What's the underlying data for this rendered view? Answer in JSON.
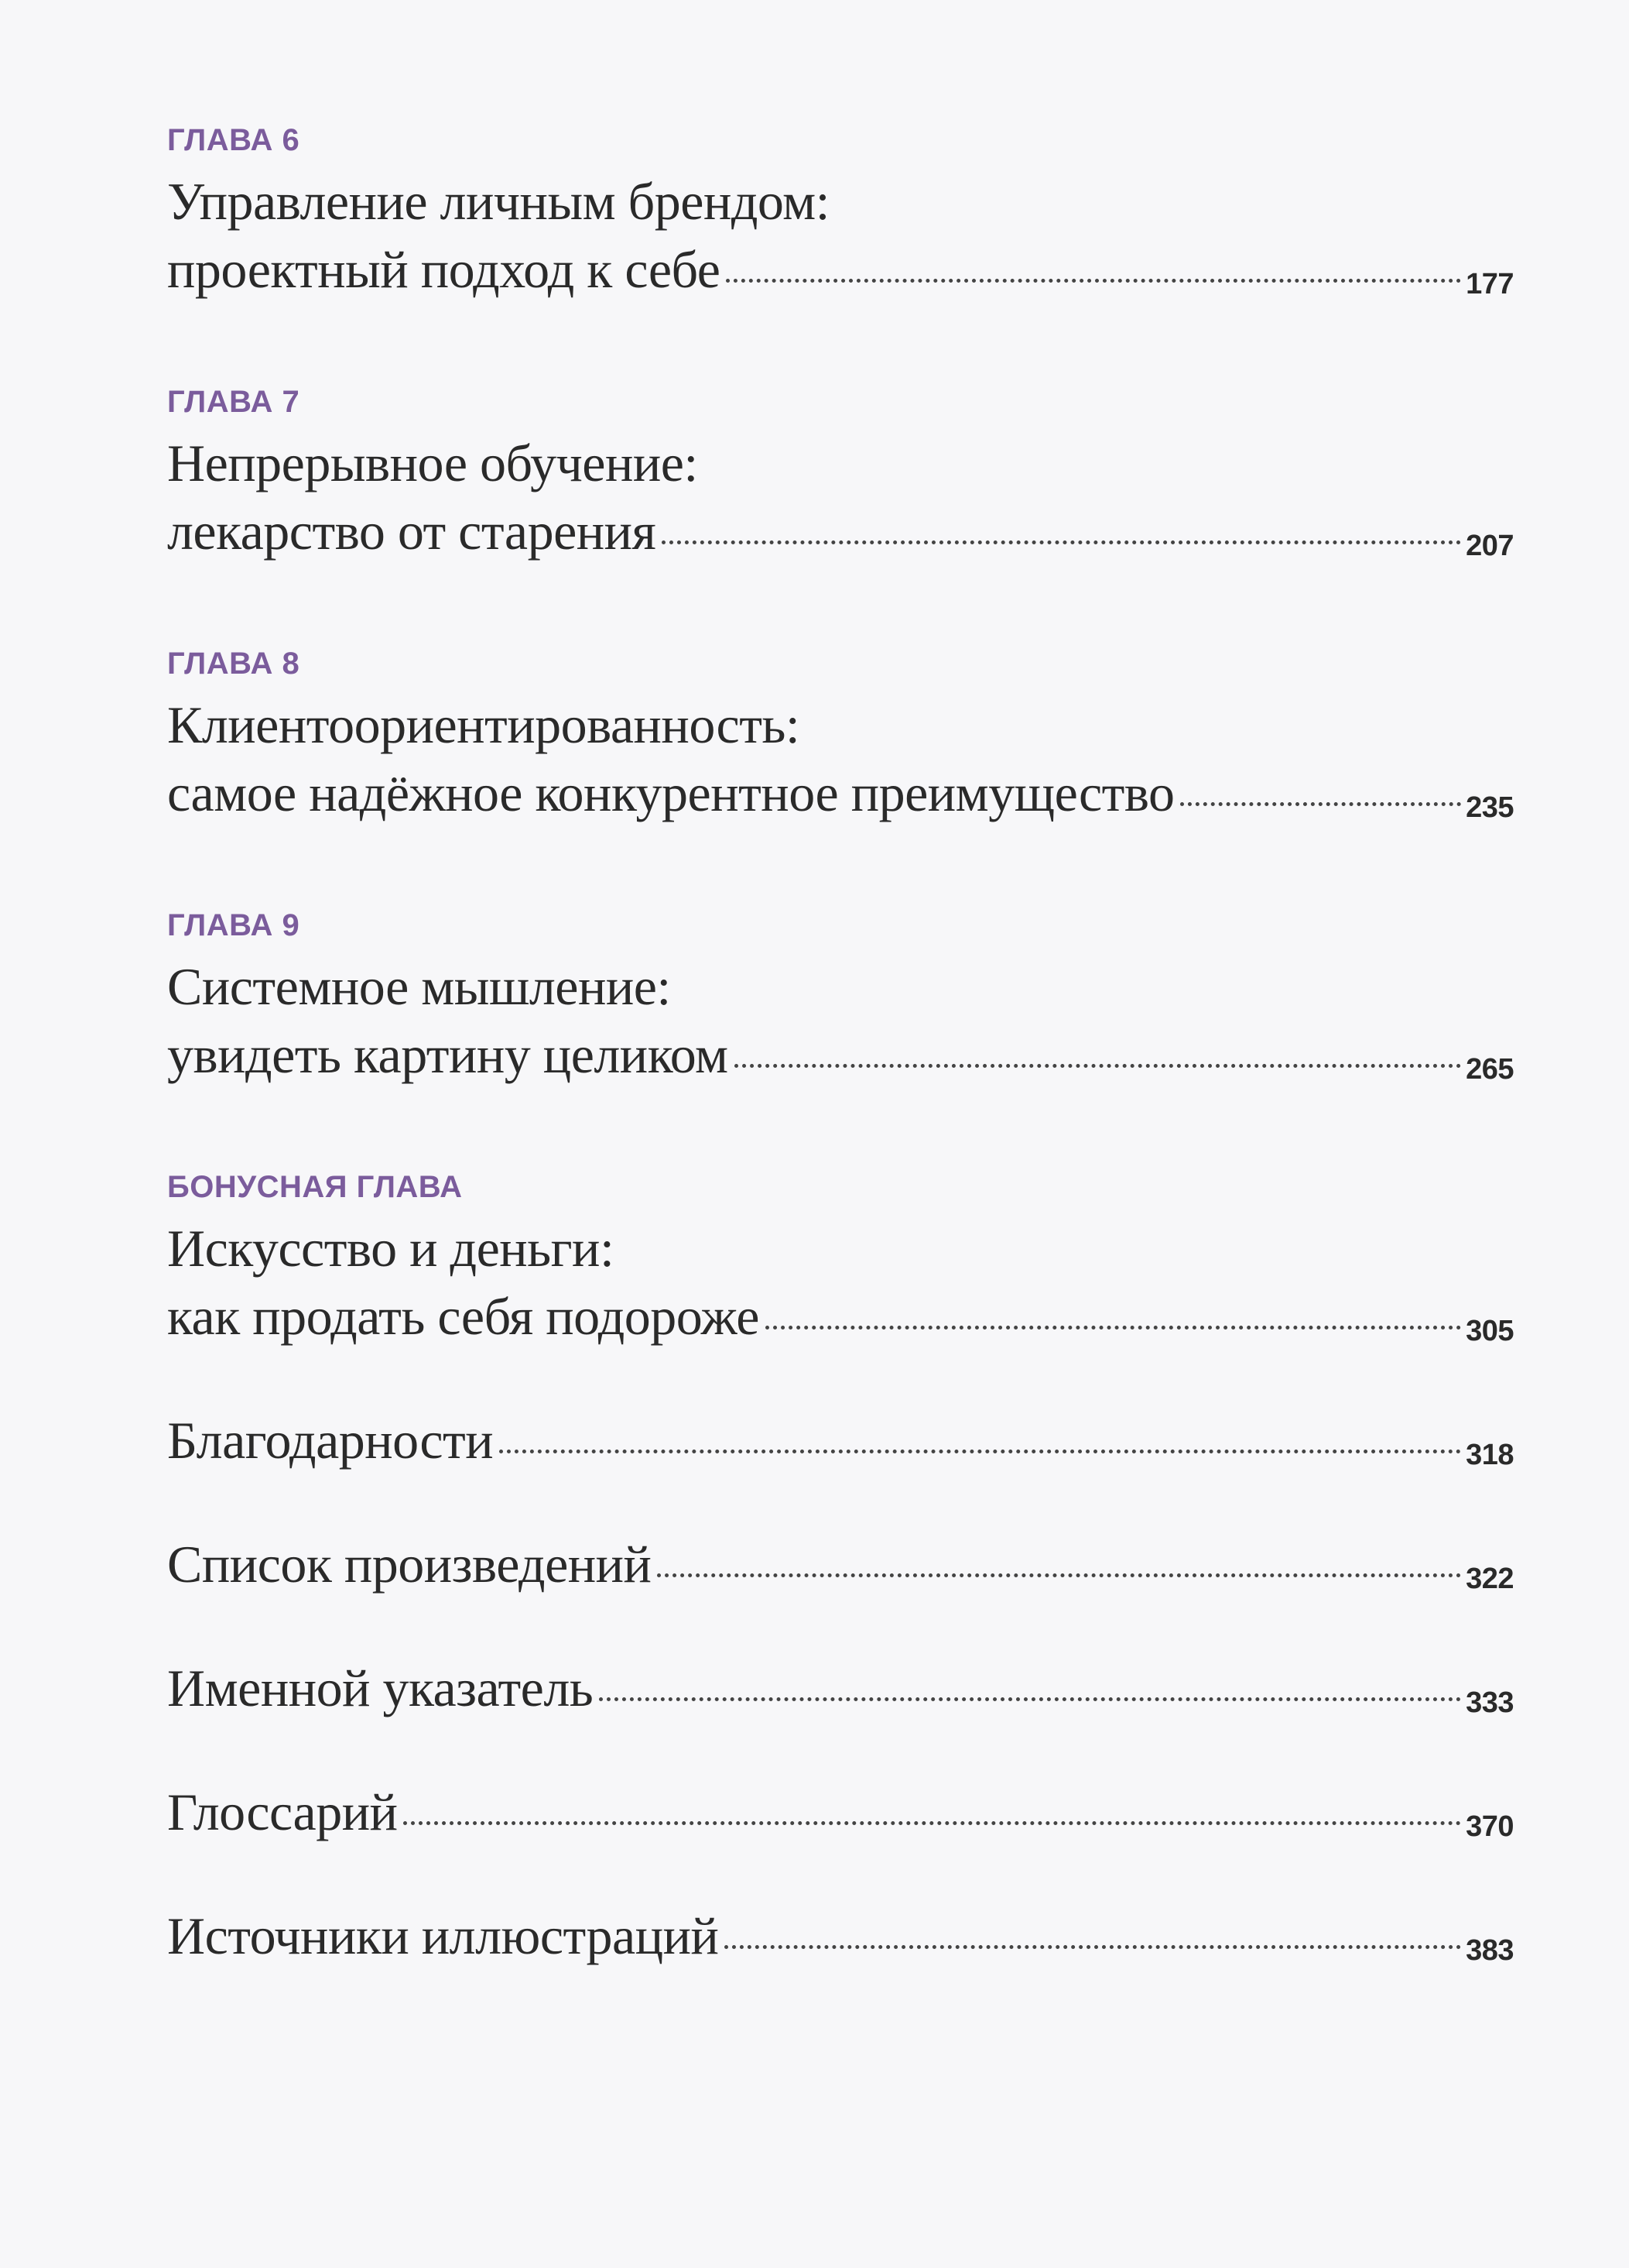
{
  "chapters": [
    {
      "label": "ГЛАВА 6",
      "line1": "Управление личным брендом:",
      "line2": "проектный подход к себе",
      "page": "177"
    },
    {
      "label": "ГЛАВА 7",
      "line1": "Непрерывное обучение:",
      "line2": "лекарство от старения",
      "page": "207"
    },
    {
      "label": "ГЛАВА 8",
      "line1": "Клиентоориентированность:",
      "line2": "самое надёжное конкурентное преимущество",
      "page": "235"
    },
    {
      "label": "ГЛАВА 9",
      "line1": "Системное мышление:",
      "line2": "увидеть картину целиком",
      "page": "265"
    },
    {
      "label": "БОНУСНАЯ ГЛАВА",
      "line1": "Искусство и деньги:",
      "line2": "как продать себя подороже",
      "page": "305"
    }
  ],
  "sections": [
    {
      "title": "Благодарности",
      "page": "318"
    },
    {
      "title": "Список произведений",
      "page": "322"
    },
    {
      "title": "Именной указатель",
      "page": "333"
    },
    {
      "title": "Глоссарий",
      "page": "370"
    },
    {
      "title": "Источники иллюстраций",
      "page": "383"
    }
  ],
  "colors": {
    "label": "#7b5c9c",
    "text": "#2a2a2a",
    "paper": "#f7f7f9"
  }
}
